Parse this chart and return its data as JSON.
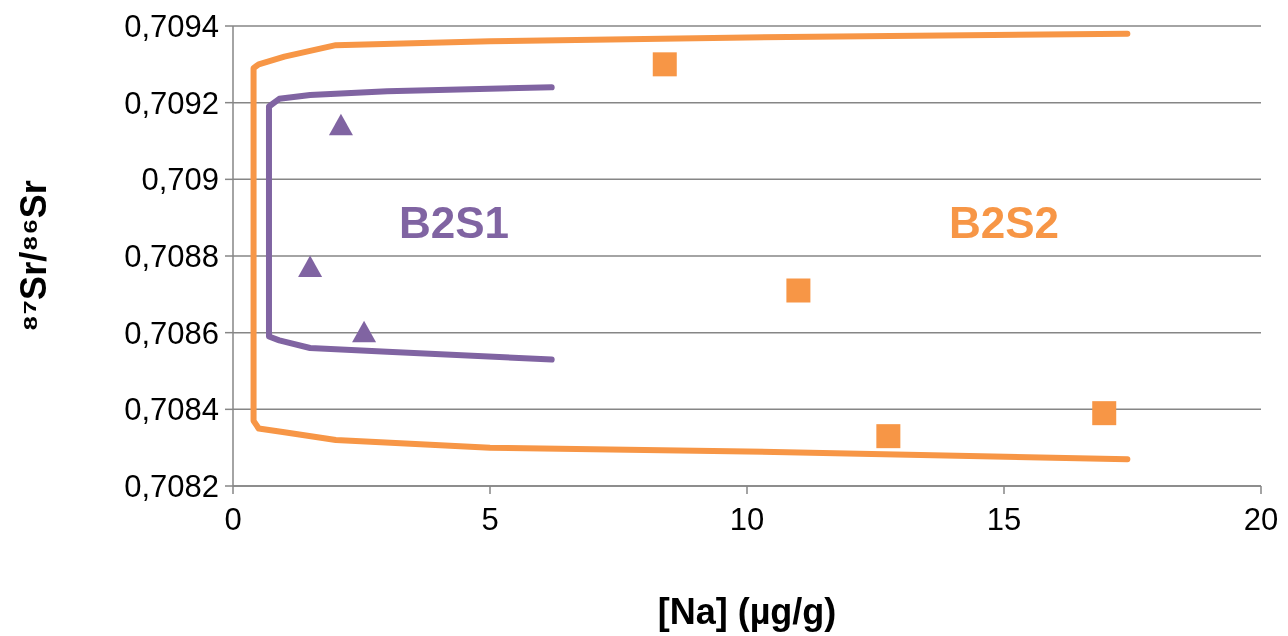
{
  "chart_data": {
    "type": "scatter",
    "xlabel": "[Na] (µg/g)",
    "ylabel": "⁸⁷Sr/⁸⁶Sr",
    "xlim": [
      0,
      20
    ],
    "xticks": [
      0,
      5,
      10,
      15,
      20
    ],
    "ylim": [
      0.7082,
      0.7094
    ],
    "yticks": [
      {
        "value": 0.7082,
        "label": "0,7082"
      },
      {
        "value": 0.7084,
        "label": "0,7084"
      },
      {
        "value": 0.7086,
        "label": "0,7086"
      },
      {
        "value": 0.7088,
        "label": "0,7088"
      },
      {
        "value": 0.709,
        "label": "0,709"
      },
      {
        "value": 0.7092,
        "label": "0,7092"
      },
      {
        "value": 0.7094,
        "label": "0,7094"
      }
    ],
    "grid": "y",
    "series": [
      {
        "type": "line",
        "color": "#f79646",
        "marker": "none",
        "x": [
          17.4,
          10,
          5,
          2,
          1,
          0.5,
          0.4,
          0.4,
          0.5,
          1,
          2,
          5,
          10,
          17.4
        ],
        "values": [
          0.70938,
          0.70937,
          0.70936,
          0.70935,
          0.70932,
          0.7093,
          0.70929,
          0.70837,
          0.70835,
          0.70834,
          0.70832,
          0.7083,
          0.70829,
          0.70827
        ]
      },
      {
        "type": "line",
        "color": "#8064a2",
        "marker": "none",
        "x": [
          6.2,
          3,
          1.5,
          0.9,
          0.7,
          0.7,
          0.9,
          1.5,
          3,
          6.2
        ],
        "values": [
          0.70924,
          0.70923,
          0.70922,
          0.70921,
          0.70919,
          0.70859,
          0.70858,
          0.70856,
          0.70855,
          0.70853
        ]
      },
      {
        "name": "B2S1",
        "color": "#8064a2",
        "marker": "triangle",
        "x": [
          2.1,
          1.5,
          2.55
        ],
        "values": [
          0.70914,
          0.70877,
          0.7086
        ]
      },
      {
        "name": "B2S2",
        "color": "#f79646",
        "marker": "square",
        "x": [
          8.4,
          11,
          12.75,
          16.95
        ],
        "values": [
          0.7093,
          0.70871,
          0.70833,
          0.70839
        ]
      }
    ]
  }
}
